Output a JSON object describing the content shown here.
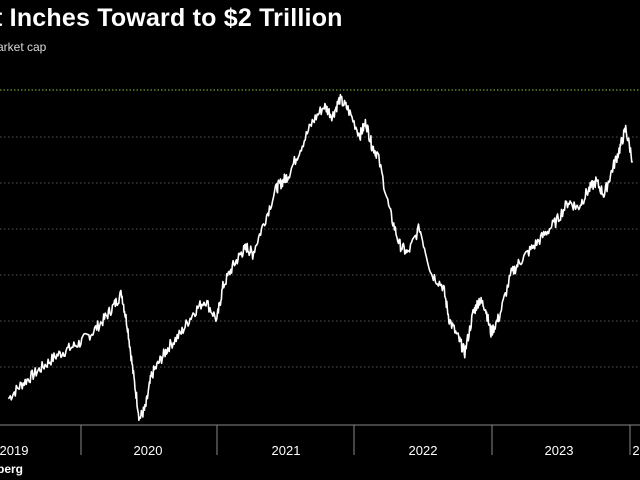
{
  "title": "t Inches Toward to $2 Trillion",
  "subtitle": "arket cap",
  "source": "berg",
  "colors": {
    "background": "#000000",
    "line": "#ffffff",
    "grid": "#555555",
    "reference_line": "#8fbf3f"
  },
  "chart_data": {
    "type": "line",
    "title": "t Inches Toward to $2 Trillion",
    "subtitle": "arket cap",
    "xlabel": "",
    "ylabel": "",
    "x_tick_labels": [
      "2019",
      "2020",
      "2021",
      "2022",
      "2023",
      "2"
    ],
    "y_tick_labels": [],
    "grid": true,
    "reference_line": {
      "label": "",
      "style": "dotted",
      "color": "#8fbf3f",
      "level": "top"
    },
    "series": [
      {
        "values": [
          [
            2019.0,
            0.08
          ],
          [
            2019.1,
            0.12
          ],
          [
            2019.2,
            0.15
          ],
          [
            2019.3,
            0.18
          ],
          [
            2019.4,
            0.21
          ],
          [
            2019.5,
            0.23
          ],
          [
            2019.6,
            0.25
          ],
          [
            2019.7,
            0.28
          ],
          [
            2019.8,
            0.32
          ],
          [
            2019.88,
            0.36
          ],
          [
            2019.95,
            0.4
          ],
          [
            2020.0,
            0.3
          ],
          [
            2020.05,
            0.15
          ],
          [
            2020.1,
            0.02
          ],
          [
            2020.15,
            0.05
          ],
          [
            2020.2,
            0.15
          ],
          [
            2020.28,
            0.2
          ],
          [
            2020.35,
            0.24
          ],
          [
            2020.45,
            0.28
          ],
          [
            2020.55,
            0.34
          ],
          [
            2020.65,
            0.38
          ],
          [
            2020.75,
            0.32
          ],
          [
            2020.8,
            0.42
          ],
          [
            2020.88,
            0.48
          ],
          [
            2020.95,
            0.52
          ],
          [
            2021.0,
            0.54
          ],
          [
            2021.05,
            0.52
          ],
          [
            2021.15,
            0.62
          ],
          [
            2021.25,
            0.72
          ],
          [
            2021.3,
            0.74
          ],
          [
            2021.35,
            0.76
          ],
          [
            2021.45,
            0.84
          ],
          [
            2021.55,
            0.92
          ],
          [
            2021.65,
            0.97
          ],
          [
            2021.72,
            0.94
          ],
          [
            2021.78,
            0.99
          ],
          [
            2021.85,
            0.96
          ],
          [
            2021.95,
            0.88
          ],
          [
            2022.0,
            0.92
          ],
          [
            2022.05,
            0.85
          ],
          [
            2022.1,
            0.82
          ],
          [
            2022.2,
            0.65
          ],
          [
            2022.28,
            0.55
          ],
          [
            2022.35,
            0.52
          ],
          [
            2022.45,
            0.6
          ],
          [
            2022.55,
            0.46
          ],
          [
            2022.65,
            0.42
          ],
          [
            2022.7,
            0.32
          ],
          [
            2022.78,
            0.26
          ],
          [
            2022.83,
            0.22
          ],
          [
            2022.9,
            0.34
          ],
          [
            2022.95,
            0.38
          ],
          [
            2023.0,
            0.36
          ],
          [
            2023.05,
            0.28
          ],
          [
            2023.12,
            0.33
          ],
          [
            2023.22,
            0.46
          ],
          [
            2023.3,
            0.5
          ],
          [
            2023.4,
            0.54
          ],
          [
            2023.5,
            0.58
          ],
          [
            2023.6,
            0.62
          ],
          [
            2023.7,
            0.68
          ],
          [
            2023.78,
            0.66
          ],
          [
            2023.86,
            0.71
          ],
          [
            2023.93,
            0.74
          ],
          [
            2024.0,
            0.7
          ],
          [
            2024.07,
            0.78
          ],
          [
            2024.13,
            0.84
          ],
          [
            2024.18,
            0.9
          ],
          [
            2024.24,
            0.8
          ]
        ]
      }
    ]
  }
}
